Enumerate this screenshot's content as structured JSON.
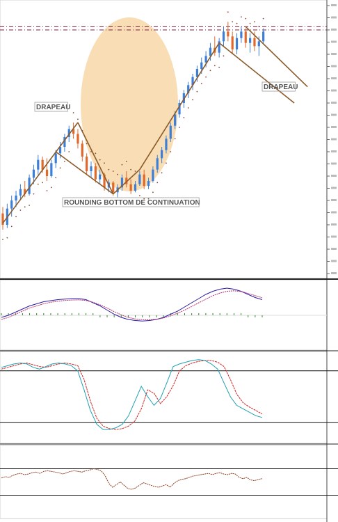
{
  "chart_data": [
    {
      "type": "candlestick",
      "title": "",
      "annotations": {
        "drapeau_left": "DRAPEAU",
        "drapeau_right": "DRAPEAU",
        "rounding_bottom": "ROUNDING BOTTOM DE CONTINUATION"
      },
      "colors": {
        "up": "#3d7fd6",
        "down": "#e0692a",
        "trendline": "#8a5a2a",
        "highlight": "#f7d9ad",
        "sar": "#8a4a3a",
        "resistance": "#7a1f3a"
      },
      "candles": [
        {
          "o": 22,
          "h": 26,
          "l": 12,
          "c": 15
        },
        {
          "o": 15,
          "h": 28,
          "l": 13,
          "c": 25
        },
        {
          "o": 25,
          "h": 33,
          "l": 20,
          "c": 30
        },
        {
          "o": 30,
          "h": 36,
          "l": 26,
          "c": 33
        },
        {
          "o": 33,
          "h": 40,
          "l": 30,
          "c": 37
        },
        {
          "o": 37,
          "h": 42,
          "l": 32,
          "c": 34
        },
        {
          "o": 34,
          "h": 46,
          "l": 33,
          "c": 44
        },
        {
          "o": 44,
          "h": 52,
          "l": 40,
          "c": 49
        },
        {
          "o": 49,
          "h": 58,
          "l": 46,
          "c": 55
        },
        {
          "o": 55,
          "h": 57,
          "l": 47,
          "c": 49
        },
        {
          "o": 49,
          "h": 56,
          "l": 42,
          "c": 45
        },
        {
          "o": 45,
          "h": 55,
          "l": 44,
          "c": 53
        },
        {
          "o": 53,
          "h": 61,
          "l": 50,
          "c": 59
        },
        {
          "o": 59,
          "h": 66,
          "l": 56,
          "c": 63
        },
        {
          "o": 63,
          "h": 71,
          "l": 60,
          "c": 69
        },
        {
          "o": 69,
          "h": 76,
          "l": 66,
          "c": 74
        },
        {
          "o": 74,
          "h": 78,
          "l": 68,
          "c": 71
        },
        {
          "o": 71,
          "h": 74,
          "l": 62,
          "c": 65
        },
        {
          "o": 65,
          "h": 67,
          "l": 54,
          "c": 57
        },
        {
          "o": 57,
          "h": 59,
          "l": 46,
          "c": 48
        },
        {
          "o": 48,
          "h": 54,
          "l": 44,
          "c": 51
        },
        {
          "o": 51,
          "h": 53,
          "l": 41,
          "c": 43
        },
        {
          "o": 43,
          "h": 49,
          "l": 40,
          "c": 46
        },
        {
          "o": 46,
          "h": 47,
          "l": 36,
          "c": 38
        },
        {
          "o": 38,
          "h": 43,
          "l": 35,
          "c": 41
        },
        {
          "o": 41,
          "h": 42,
          "l": 33,
          "c": 35
        },
        {
          "o": 35,
          "h": 40,
          "l": 32,
          "c": 38
        },
        {
          "o": 38,
          "h": 46,
          "l": 36,
          "c": 44
        },
        {
          "o": 44,
          "h": 48,
          "l": 38,
          "c": 40
        },
        {
          "o": 40,
          "h": 43,
          "l": 34,
          "c": 36
        },
        {
          "o": 36,
          "h": 42,
          "l": 35,
          "c": 40
        },
        {
          "o": 40,
          "h": 48,
          "l": 39,
          "c": 46
        },
        {
          "o": 46,
          "h": 49,
          "l": 37,
          "c": 39
        },
        {
          "o": 39,
          "h": 44,
          "l": 37,
          "c": 42
        },
        {
          "o": 42,
          "h": 51,
          "l": 41,
          "c": 49
        },
        {
          "o": 49,
          "h": 58,
          "l": 47,
          "c": 56
        },
        {
          "o": 56,
          "h": 63,
          "l": 53,
          "c": 61
        },
        {
          "o": 61,
          "h": 70,
          "l": 59,
          "c": 68
        },
        {
          "o": 68,
          "h": 78,
          "l": 66,
          "c": 76
        },
        {
          "o": 76,
          "h": 85,
          "l": 74,
          "c": 83
        },
        {
          "o": 83,
          "h": 92,
          "l": 81,
          "c": 90
        },
        {
          "o": 90,
          "h": 98,
          "l": 87,
          "c": 96
        },
        {
          "o": 96,
          "h": 103,
          "l": 93,
          "c": 101
        },
        {
          "o": 101,
          "h": 108,
          "l": 98,
          "c": 106
        },
        {
          "o": 106,
          "h": 113,
          "l": 103,
          "c": 111
        },
        {
          "o": 111,
          "h": 118,
          "l": 108,
          "c": 115
        },
        {
          "o": 115,
          "h": 122,
          "l": 112,
          "c": 119
        },
        {
          "o": 119,
          "h": 127,
          "l": 116,
          "c": 124
        },
        {
          "o": 124,
          "h": 131,
          "l": 119,
          "c": 121
        },
        {
          "o": 121,
          "h": 130,
          "l": 118,
          "c": 128
        },
        {
          "o": 128,
          "h": 137,
          "l": 125,
          "c": 134
        },
        {
          "o": 134,
          "h": 140,
          "l": 128,
          "c": 131
        },
        {
          "o": 131,
          "h": 134,
          "l": 120,
          "c": 123
        },
        {
          "o": 123,
          "h": 133,
          "l": 120,
          "c": 130
        },
        {
          "o": 130,
          "h": 137,
          "l": 127,
          "c": 134
        },
        {
          "o": 134,
          "h": 136,
          "l": 124,
          "c": 127
        },
        {
          "o": 127,
          "h": 133,
          "l": 121,
          "c": 130
        },
        {
          "o": 130,
          "h": 134,
          "l": 122,
          "c": 125
        },
        {
          "o": 125,
          "h": 131,
          "l": 119,
          "c": 128
        },
        {
          "o": 128,
          "h": 136,
          "l": 126,
          "c": 134
        }
      ],
      "resistance_levels": [
        137,
        135
      ]
    },
    {
      "type": "line",
      "title": "",
      "series": [
        {
          "values": [
            -2,
            0,
            3,
            6,
            9,
            11,
            13,
            14,
            15,
            15.5,
            16,
            16,
            15,
            12,
            9,
            5,
            1,
            -2,
            -4,
            -5,
            -5.5,
            -5,
            -4,
            -2,
            1,
            4,
            8,
            12,
            16,
            20,
            23,
            25,
            26,
            25,
            23,
            20,
            17,
            15
          ],
          "color": "#2a1a9e"
        },
        {
          "values": [
            -4,
            -2,
            1,
            4,
            7,
            9,
            11,
            12.5,
            13.5,
            14.2,
            14.6,
            14.8,
            14.2,
            12.5,
            10,
            7,
            3.5,
            0.5,
            -2,
            -3.5,
            -4.2,
            -4.3,
            -3.8,
            -2.6,
            -0.6,
            2,
            5,
            8.5,
            12,
            15.5,
            18.8,
            21.3,
            23,
            23.5,
            22.8,
            21,
            18.8,
            16.8
          ],
          "color": "#b03070"
        }
      ],
      "histogram": [
        2,
        2,
        2,
        2,
        2,
        2,
        2,
        2,
        2,
        2,
        2,
        2,
        2,
        2,
        -2,
        -2,
        -2,
        -2,
        -2,
        -2,
        -2,
        -2,
        -2,
        -2,
        2,
        2,
        2,
        2,
        2,
        2,
        2,
        2,
        2,
        2,
        2,
        -2,
        -2,
        -2
      ],
      "ylim": [
        -30,
        30
      ]
    },
    {
      "type": "line",
      "title": "",
      "series": [
        {
          "values": [
            82,
            84,
            86,
            88,
            89,
            87,
            85,
            84,
            86,
            88,
            89,
            88,
            86,
            70,
            45,
            25,
            16,
            13,
            12,
            13,
            16,
            22,
            36,
            58,
            54,
            42,
            50,
            63,
            80,
            86,
            89,
            91,
            92,
            92,
            90,
            85,
            70,
            53,
            43,
            38,
            34,
            30
          ],
          "color": "#d02020"
        },
        {
          "values": [
            84,
            86,
            88,
            89,
            88,
            84,
            82,
            85,
            88,
            89,
            88,
            86,
            80,
            58,
            34,
            18,
            12,
            12,
            14,
            18,
            28,
            45,
            62,
            50,
            40,
            48,
            66,
            85,
            88,
            90,
            92,
            93,
            92,
            88,
            82,
            66,
            50,
            40,
            36,
            32,
            28,
            26
          ],
          "color": "#20a0b0"
        }
      ],
      "levels": [
        80,
        20
      ],
      "ylim": [
        0,
        100
      ]
    },
    {
      "type": "line",
      "title": "",
      "series": [
        {
          "values": [
            56,
            58,
            57,
            60,
            62,
            63,
            61,
            62,
            64,
            65,
            63,
            66,
            67,
            66,
            65,
            64,
            62,
            64,
            66,
            67,
            66,
            65,
            67,
            68,
            70,
            69,
            67,
            60,
            48,
            42,
            46,
            50,
            45,
            40,
            39,
            41,
            45,
            49,
            47,
            45,
            43,
            42,
            44,
            46,
            42,
            48,
            52,
            54,
            55,
            57,
            59,
            60,
            61,
            62,
            63,
            61,
            63,
            64,
            62,
            61,
            63,
            62,
            57,
            55,
            57,
            53,
            52,
            54,
            55
          ],
          "color": "#8a3a1a"
        }
      ],
      "levels": [
        70,
        30
      ],
      "ylim": [
        0,
        100
      ]
    }
  ]
}
